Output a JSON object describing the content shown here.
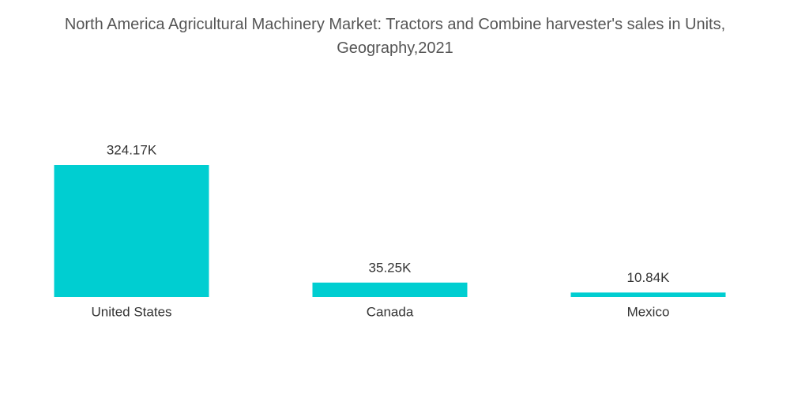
{
  "chart_data": {
    "type": "bar",
    "title": "North America Agricultural Machinery Market: Tractors and Combine harvester's sales in Units, Geography,2021",
    "categories": [
      "United States",
      "Canada",
      "Mexico"
    ],
    "values": [
      324170,
      35250,
      10840
    ],
    "value_labels": [
      "324.17K",
      "35.25K",
      "10.84K"
    ],
    "color": "#00ced1"
  }
}
